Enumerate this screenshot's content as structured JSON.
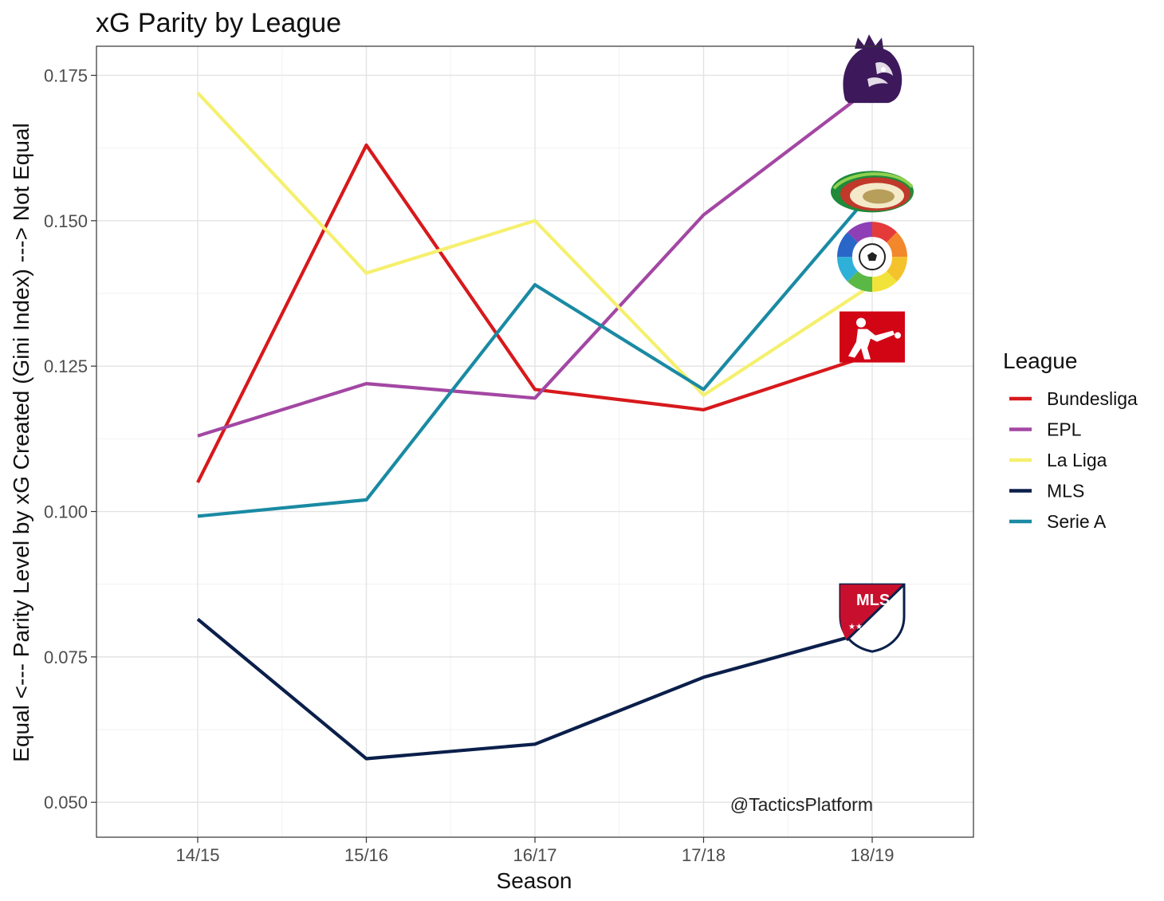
{
  "chart_data": {
    "type": "line",
    "title": "xG Parity by League",
    "xlabel": "Season",
    "ylabel": "Equal <--- Parity Level by xG Created (Gini Index) ---> Not Equal",
    "categories": [
      "14/15",
      "15/16",
      "16/17",
      "17/18",
      "18/19"
    ],
    "ylim": [
      0.044,
      0.18
    ],
    "yticks": [
      0.05,
      0.075,
      0.1,
      0.125,
      0.15,
      0.175
    ],
    "ytick_labels": [
      "0.050",
      "0.075",
      "0.100",
      "0.125",
      "0.150",
      "0.175"
    ],
    "grid": true,
    "legend_title": "League",
    "legend_position": "right",
    "series": [
      {
        "name": "Bundesliga",
        "color": "#d7191c",
        "values": [
          0.105,
          0.163,
          0.121,
          0.1175,
          0.127
        ],
        "logo": "bundesliga-logo"
      },
      {
        "name": "EPL",
        "color": "#a347a3",
        "values": [
          0.113,
          0.122,
          0.1195,
          0.151,
          0.173
        ],
        "logo": "premier-league-logo"
      },
      {
        "name": "La Liga",
        "color": "#f5f06e",
        "values": [
          0.172,
          0.141,
          0.15,
          0.12,
          0.139
        ],
        "logo": "laliga-logo"
      },
      {
        "name": "MLS",
        "color": "#0b1f4b",
        "values": [
          0.0815,
          0.0575,
          0.06,
          0.0715,
          0.0795
        ],
        "logo": "mls-logo"
      },
      {
        "name": "Serie A",
        "color": "#1a8aa3",
        "values": [
          0.0992,
          0.102,
          0.139,
          0.121,
          0.155
        ],
        "logo": "serie-a-logo"
      }
    ],
    "annotation": "@TacticsPlatform"
  }
}
